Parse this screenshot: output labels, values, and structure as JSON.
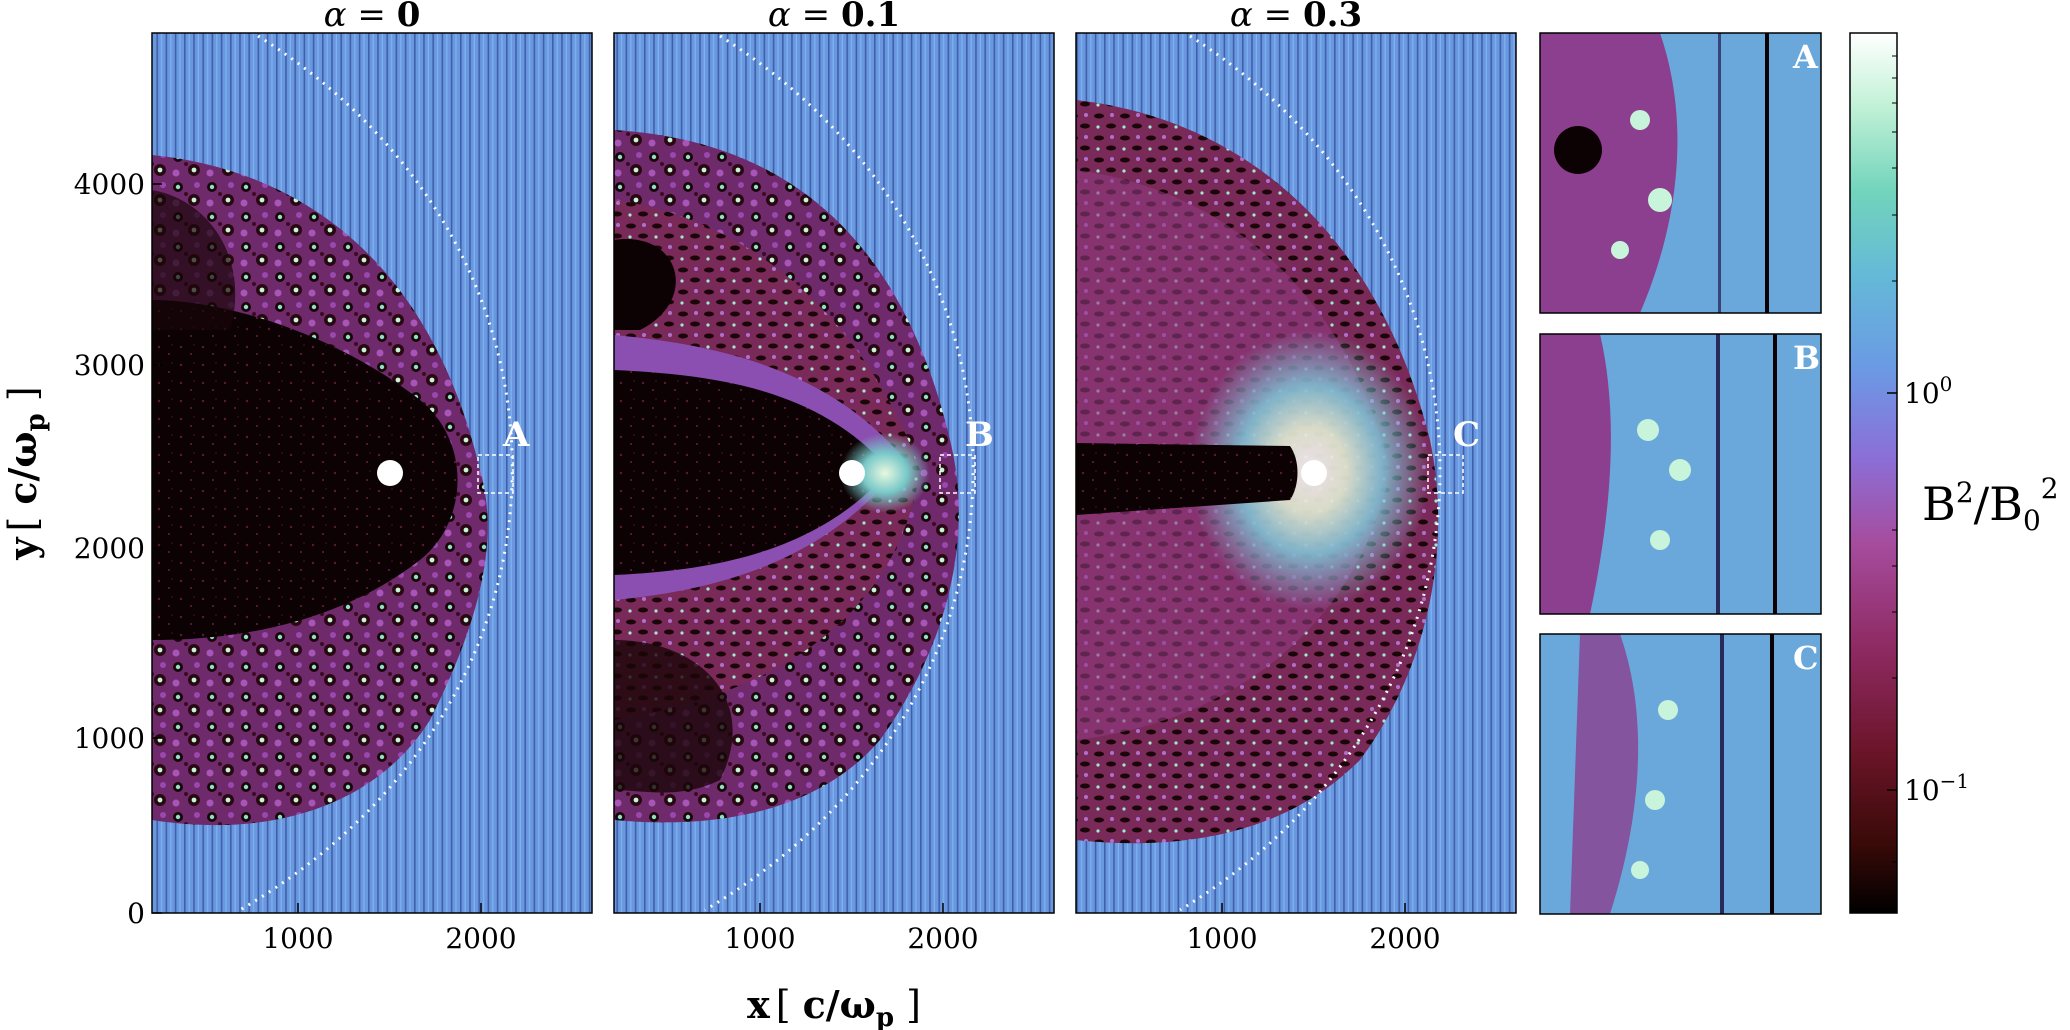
{
  "panels": [
    {
      "title_symbol": "α",
      "title_eq": " = ",
      "title_value": "0",
      "inset_label": "A"
    },
    {
      "title_symbol": "α",
      "title_eq": " = ",
      "title_value": "0.1",
      "inset_label": "B"
    },
    {
      "title_symbol": "α",
      "title_eq": " = ",
      "title_value": "0.3",
      "inset_label": "C"
    }
  ],
  "insets": [
    {
      "label": "A"
    },
    {
      "label": "B"
    },
    {
      "label": "C"
    }
  ],
  "x_axis": {
    "label_main": "x",
    "label_unit_open": "[ ",
    "label_unit": "c/ω",
    "label_unit_sub": "p",
    "label_unit_close": " ]",
    "ticks": [
      "1000",
      "2000"
    ]
  },
  "y_axis": {
    "label_main": "y",
    "label_unit_open": "[ ",
    "label_unit": "c/ω",
    "label_unit_sub": "p",
    "label_unit_close": " ]",
    "ticks": [
      "0",
      "1000",
      "2000",
      "3000",
      "4000"
    ]
  },
  "colorbar": {
    "label_main": "B",
    "label_sup1": "2",
    "label_slash": "/B",
    "label_sub": "0",
    "label_sup2": "2",
    "tick_major_1": "10",
    "tick_major_1_exp": "0",
    "tick_major_2": "10",
    "tick_major_2_exp": "−1",
    "colors": [
      "#000000",
      "#3a0a08",
      "#7a1d3a",
      "#a43c8e",
      "#8a6ad8",
      "#6f9fe6",
      "#68c7c8",
      "#b8f0d2",
      "#ffffff"
    ]
  }
}
